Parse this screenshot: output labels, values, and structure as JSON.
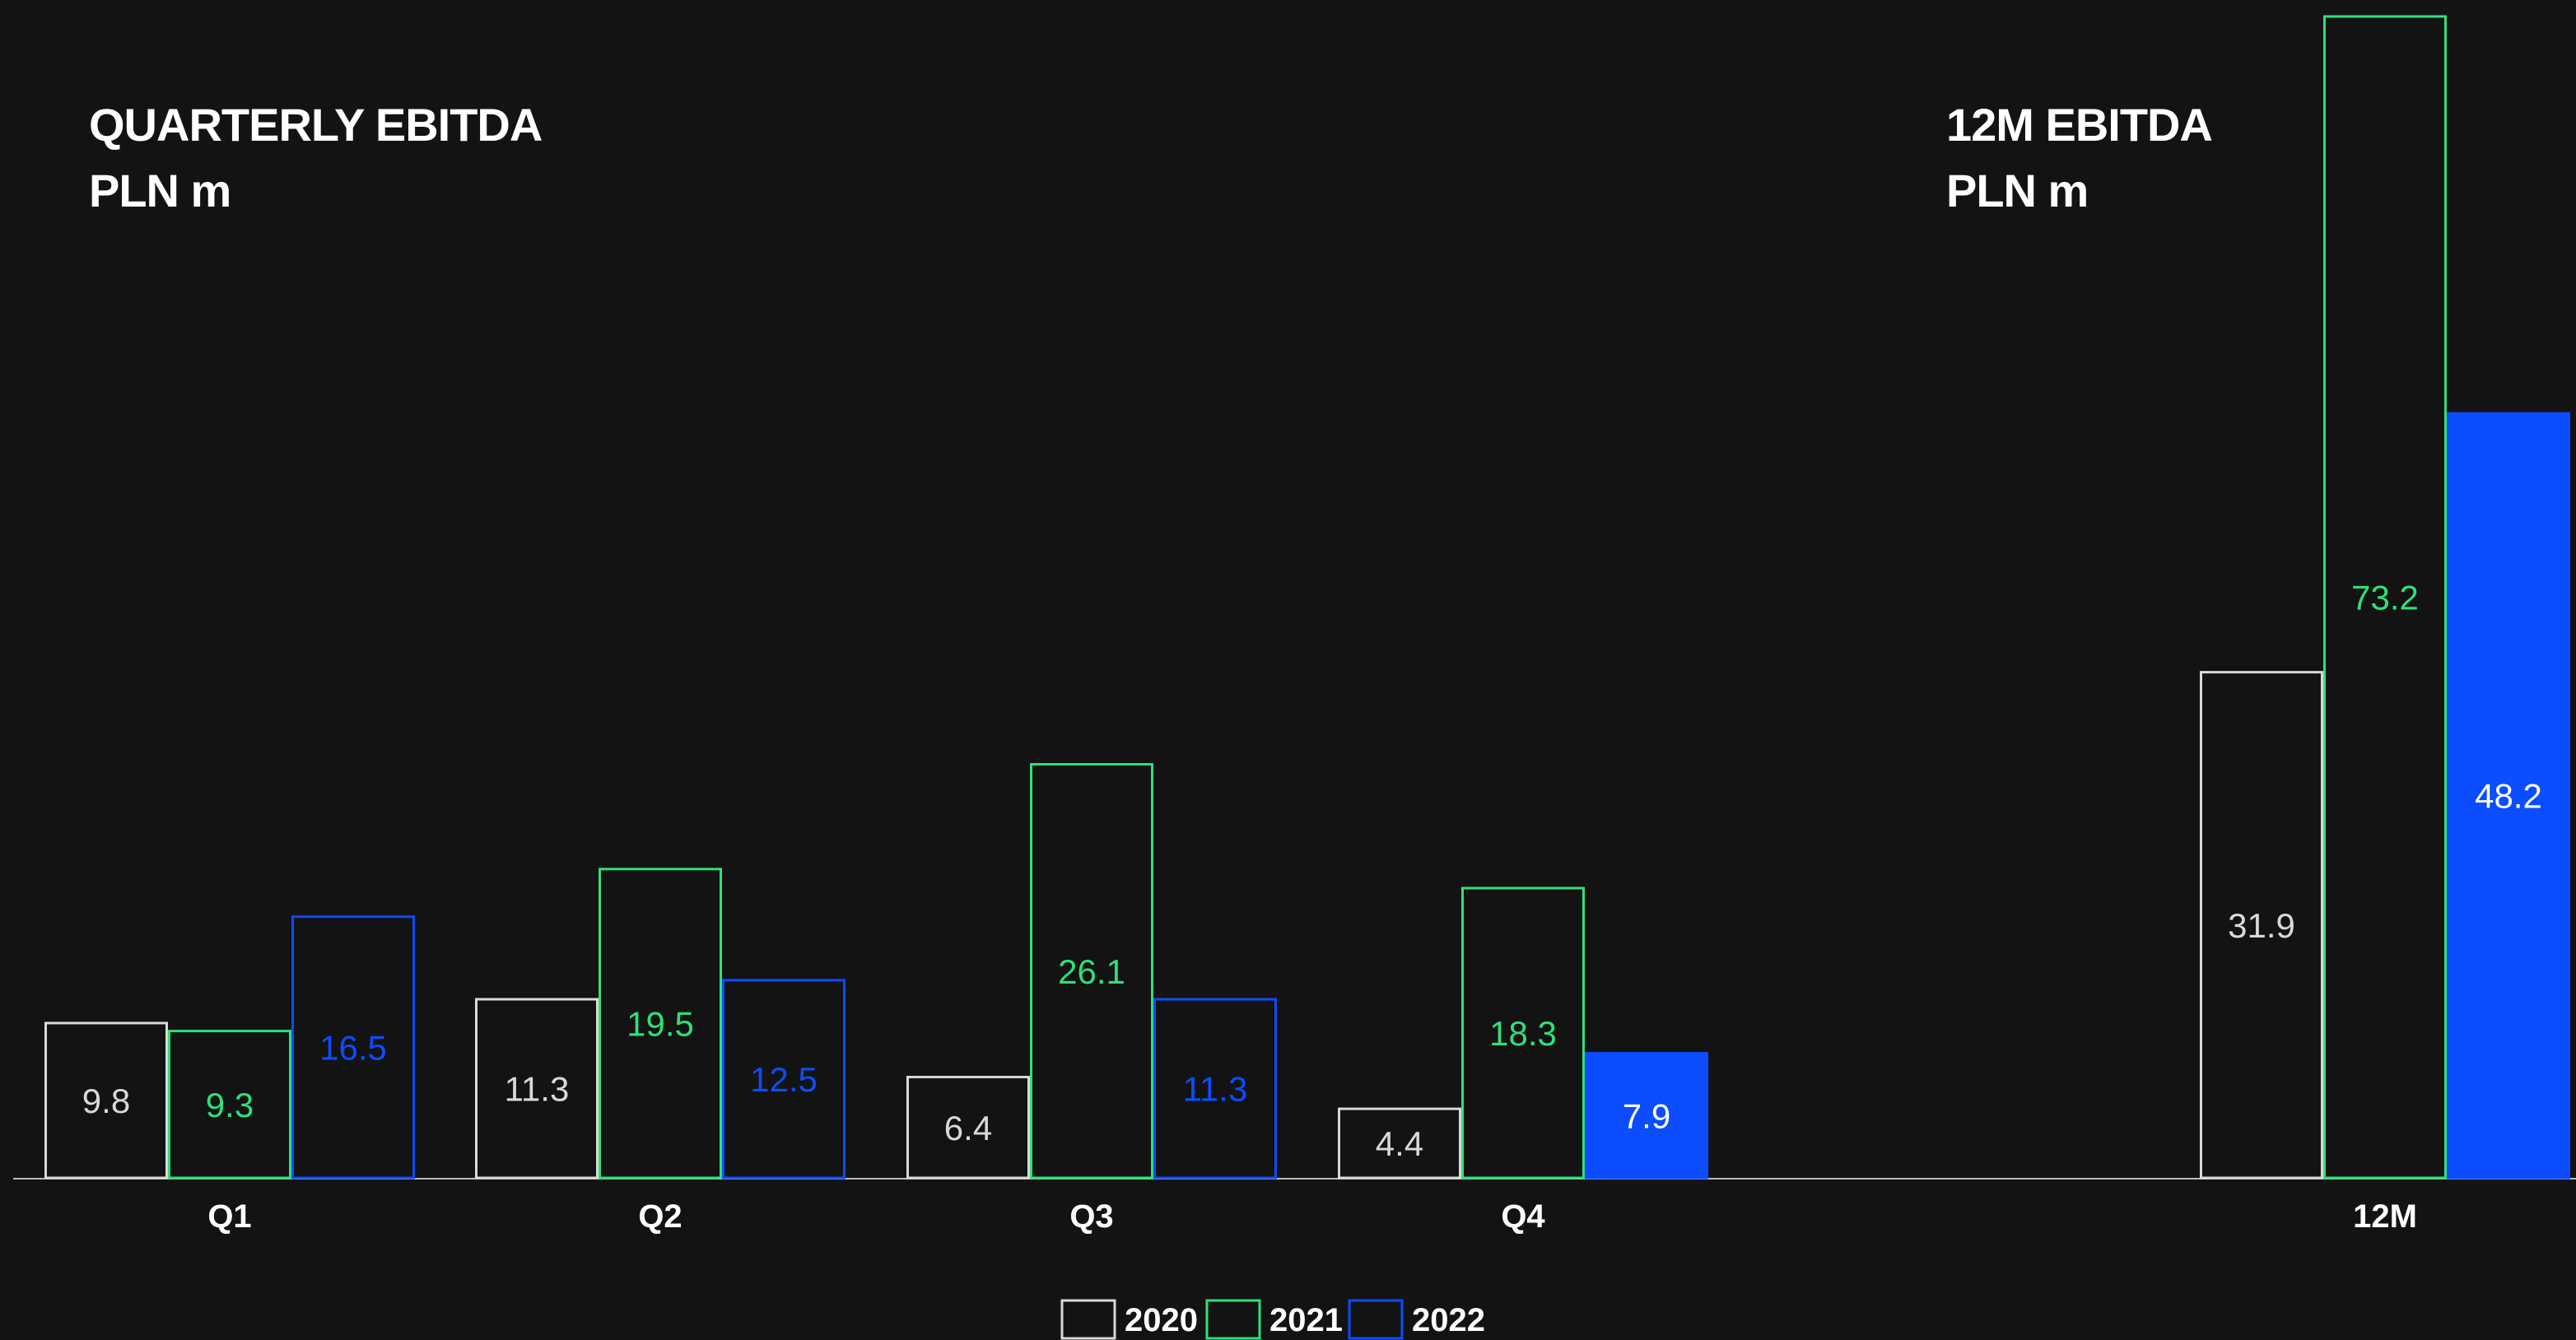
{
  "chart_data": [
    {
      "type": "bar",
      "title": "QUARTERLY EBITDA",
      "subtitle": "PLN m",
      "categories": [
        "Q1",
        "Q2",
        "Q3",
        "Q4"
      ],
      "series": [
        {
          "name": "2020",
          "values": [
            9.8,
            11.3,
            6.4,
            4.4
          ]
        },
        {
          "name": "2021",
          "values": [
            9.3,
            19.5,
            26.1,
            18.3
          ]
        },
        {
          "name": "2022",
          "values": [
            16.5,
            12.5,
            11.3,
            7.9
          ]
        }
      ],
      "ylim": [
        0,
        73.2
      ],
      "grid": false
    },
    {
      "type": "bar",
      "title": "12M EBITDA",
      "subtitle": "PLN m",
      "categories": [
        "12M"
      ],
      "series": [
        {
          "name": "2020",
          "values": [
            31.9
          ]
        },
        {
          "name": "2021",
          "values": [
            73.2
          ]
        },
        {
          "name": "2022",
          "values": [
            48.2
          ]
        }
      ],
      "ylim": [
        0,
        73.2
      ],
      "grid": false
    }
  ],
  "legend": {
    "placement": "bottom",
    "items": [
      "2020",
      "2021",
      "2022"
    ]
  },
  "colors": {
    "background": "#131313",
    "series_2020": "#d9d9d9",
    "series_2021": "#2ee07a",
    "series_2022": "#0b4dff",
    "axis": "#bdbdbd",
    "text": "#ffffff"
  }
}
